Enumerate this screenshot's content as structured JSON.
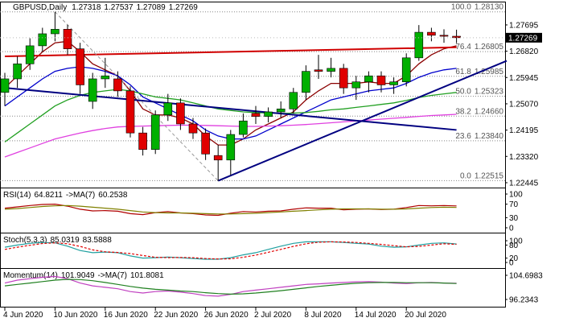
{
  "chart_data": [
    {
      "type": "candlestick",
      "title": "GBPUSD,Daily",
      "header_values": [
        1.27318,
        1.27537,
        1.27089,
        1.27269
      ],
      "categories": [
        "4 Jun 2020",
        null,
        null,
        null,
        "10 Jun 2020",
        null,
        null,
        null,
        "16 Jun 2020",
        null,
        null,
        null,
        "22 Jun 2020",
        null,
        null,
        null,
        "26 Jun 2020",
        null,
        null,
        null,
        "2 Jul 2020",
        null,
        null,
        null,
        "8 Jul 2020",
        null,
        null,
        null,
        "14 Jul 2020",
        null,
        null,
        null,
        "20 Jul 2020",
        null,
        null,
        null,
        null
      ],
      "open": [
        1.2545,
        1.259,
        1.264,
        1.27,
        1.274,
        1.2755,
        1.269,
        1.2515,
        1.259,
        1.259,
        1.255,
        1.241,
        1.2355,
        1.247,
        1.251,
        1.244,
        1.241,
        1.2335,
        1.232,
        1.2405,
        1.2475,
        1.2465,
        1.248,
        1.249,
        1.2545,
        1.262,
        1.2615,
        1.2625,
        1.256,
        1.258,
        1.26,
        1.257,
        1.258,
        1.266,
        1.2745,
        1.2735,
        1.27318
      ],
      "high": [
        1.261,
        1.2665,
        1.2725,
        1.276,
        1.2813,
        1.277,
        1.271,
        1.261,
        1.266,
        1.2615,
        1.2565,
        1.243,
        1.2485,
        1.254,
        1.2525,
        1.246,
        1.2425,
        1.237,
        1.242,
        1.2475,
        1.25,
        1.2495,
        1.2515,
        1.256,
        1.2635,
        1.267,
        1.266,
        1.264,
        1.26,
        1.2615,
        1.2615,
        1.2595,
        1.2675,
        1.2769,
        1.276,
        1.2755,
        1.27537
      ],
      "low": [
        1.25,
        1.256,
        1.262,
        1.268,
        1.2715,
        1.267,
        1.254,
        1.249,
        1.256,
        1.253,
        1.2395,
        1.2335,
        1.234,
        1.245,
        1.242,
        1.239,
        1.232,
        1.2251,
        1.227,
        1.2395,
        1.244,
        1.2445,
        1.246,
        1.2475,
        1.252,
        1.259,
        1.2595,
        1.254,
        1.252,
        1.2545,
        1.2545,
        1.254,
        1.2565,
        1.265,
        1.2715,
        1.271,
        1.27089
      ],
      "close": [
        1.259,
        1.264,
        1.27,
        1.274,
        1.2755,
        1.269,
        1.257,
        1.259,
        1.26,
        1.255,
        1.241,
        1.2355,
        1.247,
        1.251,
        1.244,
        1.241,
        1.234,
        1.232,
        1.2405,
        1.245,
        1.2465,
        1.248,
        1.249,
        1.2545,
        1.2615,
        1.2615,
        1.2625,
        1.256,
        1.258,
        1.26,
        1.257,
        1.258,
        1.266,
        1.2745,
        1.2735,
        1.27318,
        1.27269
      ],
      "up_color": "#00b000",
      "down_color": "#e00000",
      "series": [
        {
          "color": "#8b0000",
          "values": [
            1.256,
            1.26,
            1.264,
            1.268,
            1.271,
            1.2715,
            1.268,
            1.264,
            1.262,
            1.26,
            1.255,
            1.249,
            1.247,
            1.247,
            1.246,
            1.244,
            1.24,
            1.237,
            1.237,
            1.239,
            1.242,
            1.244,
            1.246,
            1.248,
            1.252,
            1.255,
            1.2575,
            1.2575,
            1.2575,
            1.258,
            1.2575,
            1.2575,
            1.26,
            1.264,
            1.267,
            1.269,
            1.27
          ]
        },
        {
          "color": "#0000cc",
          "values": [
            1.25,
            1.253,
            1.256,
            1.259,
            1.2615,
            1.2625,
            1.263,
            1.2625,
            1.2615,
            1.26,
            1.257,
            1.253,
            1.251,
            1.249,
            1.247,
            1.245,
            1.242,
            1.24,
            1.239,
            1.239,
            1.24,
            1.242,
            1.244,
            1.246,
            1.248,
            1.25,
            1.252,
            1.253,
            1.254,
            1.255,
            1.2555,
            1.256,
            1.2575,
            1.2595,
            1.261,
            1.262,
            1.2625
          ]
        },
        {
          "color": "#22a022",
          "values": [
            1.238,
            1.241,
            1.244,
            1.247,
            1.25,
            1.252,
            1.2535,
            1.2545,
            1.255,
            1.2555,
            1.255,
            1.254,
            1.253,
            1.2525,
            1.252,
            1.251,
            1.25,
            1.249,
            1.2485,
            1.248,
            1.2478,
            1.2476,
            1.2475,
            1.2476,
            1.2478,
            1.2482,
            1.2487,
            1.249,
            1.2495,
            1.25,
            1.2505,
            1.251,
            1.2518,
            1.2528,
            1.2535,
            1.254,
            1.2545
          ]
        },
        {
          "color": "#e040e0",
          "values": [
            1.233,
            1.2345,
            1.236,
            1.2375,
            1.239,
            1.24,
            1.241,
            1.2418,
            1.2425,
            1.243,
            1.2432,
            1.2433,
            1.2434,
            1.2435,
            1.2436,
            1.2436,
            1.2435,
            1.2434,
            1.2433,
            1.2432,
            1.2432,
            1.2433,
            1.2434,
            1.2436,
            1.2438,
            1.2441,
            1.2444,
            1.2447,
            1.245,
            1.2453,
            1.2456,
            1.2459,
            1.2462,
            1.2465,
            1.2468,
            1.247,
            1.2472
          ]
        }
      ],
      "trendlines": [
        {
          "color": "#000080",
          "x": [
            17,
            40
          ],
          "values": [
            1.2251,
            1.265
          ]
        },
        {
          "color": "#000080",
          "x": [
            0,
            36
          ],
          "values": [
            1.256,
            1.242
          ]
        },
        {
          "color": "#d00000",
          "x": [
            0,
            36
          ],
          "values": [
            1.2665,
            1.2695
          ]
        },
        {
          "color": "#999999",
          "dash": true,
          "x": [
            4,
            17
          ],
          "values": [
            1.2813,
            1.2251
          ]
        }
      ],
      "fibonacci": [
        {
          "level": "100.0",
          "price": {
            "value": 1.2813,
            "label": "1.28130"
          }
        },
        {
          "level": "76.4",
          "price": 1.26805
        },
        {
          "level": "61.8",
          "price": 1.25985
        },
        {
          "level": "50.0",
          "price": 1.25323
        },
        {
          "level": "38.2",
          "price": {
            "value": 1.2466,
            "label": "1.24660"
          }
        },
        {
          "level": "23.6",
          "price": {
            "value": 1.2384,
            "label": "1.23840"
          }
        },
        {
          "level": "0.0",
          "price": 1.22515
        }
      ],
      "last_price": 1.27269,
      "ylim": [
        1.2231,
        1.2839
      ],
      "yticks": [
        1.27695,
        {
          "value": 1.2682,
          "label": "1.26820"
        },
        1.25945,
        {
          "value": 1.2507,
          "label": "1.25070"
        },
        1.24195,
        {
          "value": 1.2332,
          "label": "1.23320"
        },
        1.22445
      ]
    },
    {
      "type": "line",
      "legend": [
        "RSI(14)",
        64.8211,
        "->MA(7)",
        60.2538
      ],
      "series": [
        {
          "color": "#b00000",
          "values": [
            58,
            62,
            66,
            69,
            70,
            64,
            55,
            50,
            51,
            49,
            42,
            39,
            45,
            48,
            44,
            42,
            38,
            37,
            43,
            48,
            47,
            49,
            50,
            55,
            59,
            58,
            58,
            53,
            55,
            56,
            54,
            55,
            60,
            66,
            65,
            66,
            64.8211
          ]
        },
        {
          "color": "#808000",
          "values": [
            55,
            57,
            60,
            63,
            65,
            66,
            64,
            61,
            58,
            55,
            51,
            47,
            45,
            44,
            44,
            43,
            42,
            41,
            41,
            42,
            43,
            45,
            47,
            49,
            51,
            53,
            55,
            56,
            56,
            56,
            55,
            55,
            56,
            58,
            60,
            61,
            60.2538
          ]
        }
      ],
      "ylim": [
        -12,
        112
      ],
      "yticks": [
        100,
        70,
        30,
        0
      ]
    },
    {
      "type": "line",
      "legend": [
        "Stoch(5,3,3)",
        85.0319,
        83.5888
      ],
      "series": [
        {
          "color": "#20a0a0",
          "values": [
            70,
            80,
            88,
            92,
            90,
            75,
            55,
            45,
            48,
            45,
            30,
            20,
            22,
            25,
            22,
            18,
            15,
            15,
            22,
            35,
            45,
            60,
            75,
            88,
            95,
            95,
            95,
            92,
            88,
            85,
            75,
            70,
            72,
            80,
            88,
            90,
            85.0319
          ]
        },
        {
          "color": "#e00000",
          "dash": true,
          "values": [
            60,
            70,
            79,
            87,
            90,
            86,
            74,
            58,
            49,
            46,
            41,
            32,
            24,
            22,
            23,
            22,
            18,
            16,
            17,
            24,
            34,
            47,
            60,
            74,
            86,
            93,
            95,
            94,
            92,
            88,
            83,
            77,
            72,
            74,
            80,
            86,
            83.5888
          ]
        }
      ],
      "ylim": [
        -22,
        126
      ],
      "yticks": [
        100,
        80,
        20,
        0
      ]
    },
    {
      "type": "line",
      "legend": [
        "Momentum(14)",
        101.9049,
        "->MA(7)",
        101.8081
      ],
      "series": [
        {
          "color": "#c040c0",
          "values": [
            102,
            103,
            103.5,
            104,
            104.3,
            103.5,
            102,
            101,
            100.5,
            100,
            99,
            98.5,
            99,
            99.2,
            98.8,
            98.3,
            97.6,
            97.4,
            98,
            99,
            99.5,
            100,
            100.5,
            101,
            101.5,
            101.7,
            102,
            102.2,
            102.4,
            102.5,
            102.3,
            102,
            101.8,
            102.1,
            102.2,
            102,
            101.9049
          ]
        },
        {
          "color": "#208020",
          "values": [
            101,
            101.5,
            102,
            102.5,
            103,
            103.3,
            103.2,
            102.8,
            102.2,
            101.5,
            100.8,
            100.2,
            99.8,
            99.5,
            99.2,
            99,
            98.6,
            98.3,
            98.1,
            98.2,
            98.5,
            98.9,
            99.3,
            99.8,
            100.3,
            100.8,
            101.2,
            101.6,
            101.9,
            102.1,
            102.2,
            102.2,
            102.1,
            102.1,
            102.1,
            102,
            101.8081
          ]
        }
      ],
      "ylim": [
        93.98,
        106.39
      ],
      "yticks": [
        104.6983,
        96.2343
      ]
    }
  ]
}
